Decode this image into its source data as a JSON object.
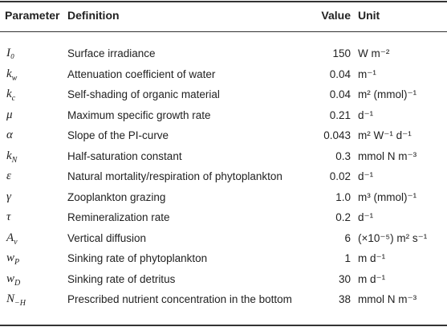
{
  "header": {
    "parameter": "Parameter",
    "definition": "Definition",
    "value": "Value",
    "unit": "Unit"
  },
  "rows": [
    {
      "param": "I₀",
      "definition": "Surface irradiance",
      "value": "150",
      "unit": "W m⁻²"
    },
    {
      "param": "k_w",
      "definition": "Attenuation coefficient of water",
      "value": "0.04",
      "unit": "m⁻¹"
    },
    {
      "param": "k_c",
      "definition": "Self-shading of organic material",
      "value": "0.04",
      "unit": "m² (mmol)⁻¹"
    },
    {
      "param": "μ",
      "definition": "Maximum specific growth rate",
      "value": "0.21",
      "unit": "d⁻¹"
    },
    {
      "param": "α",
      "definition": "Slope of the PI-curve",
      "value": "0.043",
      "unit": "m² W⁻¹ d⁻¹"
    },
    {
      "param": "k_N",
      "definition": "Half-saturation constant",
      "value": "0.3",
      "unit": "mmol N m⁻³"
    },
    {
      "param": "ε",
      "definition": "Natural mortality/respiration of phytoplankton",
      "value": "0.02",
      "unit": "d⁻¹"
    },
    {
      "param": "γ",
      "definition": "Zooplankton grazing",
      "value": "1.0",
      "unit": "m³ (mmol)⁻¹"
    },
    {
      "param": "τ",
      "definition": "Remineralization rate",
      "value": "0.2",
      "unit": "d⁻¹"
    },
    {
      "param": "A_ν",
      "definition": "Vertical diffusion",
      "value": "6",
      "unit": "(×10⁻⁵) m² s⁻¹"
    },
    {
      "param": "w_P",
      "definition": "Sinking rate of phytoplankton",
      "value": "1",
      "unit": "m d⁻¹"
    },
    {
      "param": "w_D",
      "definition": "Sinking rate of detritus",
      "value": "30",
      "unit": "m d⁻¹"
    },
    {
      "param": "N_−H",
      "definition": "Prescribed nutrient concentration in the bottom",
      "value": "38",
      "unit": "mmol N m⁻³"
    }
  ]
}
